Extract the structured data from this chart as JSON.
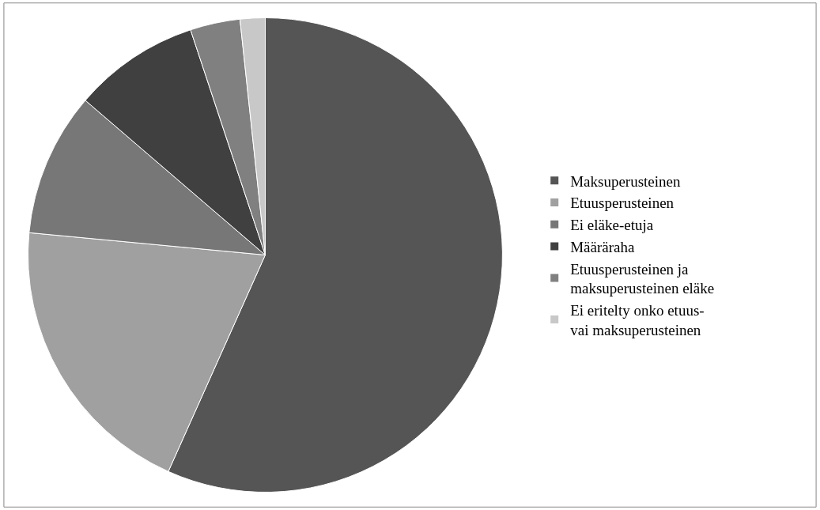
{
  "chart_data": {
    "type": "pie",
    "categories": [
      "Maksuperusteinen",
      "Etuusperusteinen",
      "Ei eläke-etuja",
      "Määräraha",
      "Etuusperusteinen ja maksuperusteinen eläke",
      "Ei eritelty onko etuus- vai maksuperusteinen"
    ],
    "values": [
      56.7,
      19.8,
      9.8,
      8.6,
      3.4,
      1.7
    ],
    "colors": [
      "#555555",
      "#a0a0a0",
      "#777777",
      "#404040",
      "#808080",
      "#c8c8c8"
    ],
    "legend": "right"
  }
}
